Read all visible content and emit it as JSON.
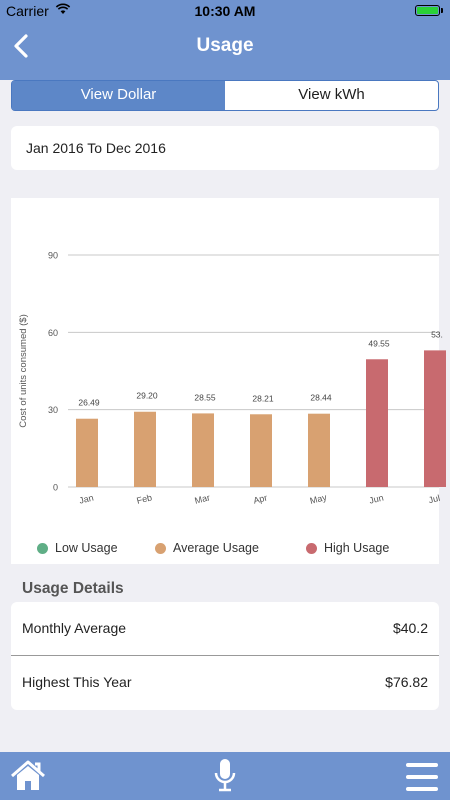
{
  "status_bar": {
    "carrier": "Carrier",
    "time": "10:30 AM",
    "battery_color": "#2ad137"
  },
  "header": {
    "title": "Usage",
    "back_icon": "chevron-left-icon",
    "bg_color": "#6f93cf"
  },
  "view_toggle": {
    "options": [
      "View Dollar",
      "View kWh"
    ],
    "selected": "View Dollar",
    "active_color": "#5d87c8"
  },
  "date_range": "Jan 2016 To Dec 2016",
  "chart_data": {
    "type": "bar",
    "ylabel": "Cost of units consumed ($)",
    "ylim": [
      0,
      90
    ],
    "yticks": [
      0,
      30,
      60,
      90
    ],
    "categories": [
      "Jan",
      "Feb",
      "Mar",
      "Apr",
      "May",
      "Jun",
      "Jul"
    ],
    "values": [
      26.49,
      29.2,
      28.55,
      28.21,
      28.44,
      49.55,
      53.0
    ],
    "value_labels": [
      "26.49",
      "29.20",
      "28.55",
      "28.21",
      "28.44",
      "49.55",
      "53."
    ],
    "levels": [
      "Average Usage",
      "Average Usage",
      "Average Usage",
      "Average Usage",
      "Average Usage",
      "High Usage",
      "High Usage"
    ],
    "legend": [
      {
        "name": "Low Usage",
        "color": "#5fae86"
      },
      {
        "name": "Average Usage",
        "color": "#d8a171"
      },
      {
        "name": "High Usage",
        "color": "#c86a6f"
      }
    ],
    "grid": true
  },
  "usage_details": {
    "title": "Usage Details",
    "rows": [
      {
        "label": "Monthly Average",
        "value": "$40.2"
      },
      {
        "label": "Highest This Year",
        "value": "$76.82"
      }
    ]
  },
  "tabbar": {
    "icons": [
      "home-icon",
      "microphone-icon",
      "menu-icon"
    ],
    "bg_color": "#6f93cf"
  }
}
